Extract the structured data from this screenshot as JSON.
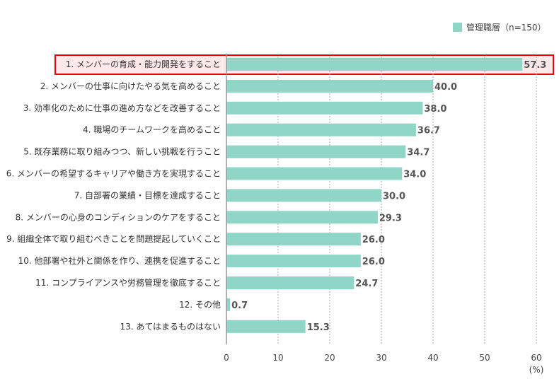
{
  "chart_data": {
    "type": "bar",
    "orientation": "horizontal",
    "categories": [
      "1. メンバーの育成・能力開発をすること",
      "2. メンバーの仕事に向けたやる気を高めること",
      "3. 効率化のために仕事の進め方などを改善すること",
      "4. 職場のチームワークを高めること",
      "5. 既存業務に取り組みつつ、新しい挑戦を行うこと",
      "6. メンバーの希望するキャリアや働き方を実現すること",
      "7. 自部署の業績・目標を達成すること",
      "8. メンバーの心身のコンディションのケアをすること",
      "9. 組織全体で取り組むべきことを問題提起していくこと",
      "10. 他部署や社外と関係を作り、連携を促進すること",
      "11. コンプライアンスや労務管理を徹底すること",
      "12. その他",
      "13. あてはまるものはない"
    ],
    "series": [
      {
        "name": "管理職層（n=150）",
        "values": [
          57.3,
          40.0,
          38.0,
          36.7,
          34.7,
          34.0,
          30.0,
          29.3,
          26.0,
          26.0,
          24.7,
          0.7,
          15.3
        ]
      }
    ],
    "xlim": [
      0,
      60
    ],
    "ticks": [
      0,
      10,
      20,
      30,
      40,
      50,
      60
    ],
    "xlabel": "(%)",
    "legend_position": "top-right",
    "highlighted_index": 0,
    "colors": {
      "bar": "#8fd6c6",
      "highlight_border": "#e60012",
      "highlight_fill": "#fde8ea",
      "grid": "#aaaaaa"
    }
  }
}
